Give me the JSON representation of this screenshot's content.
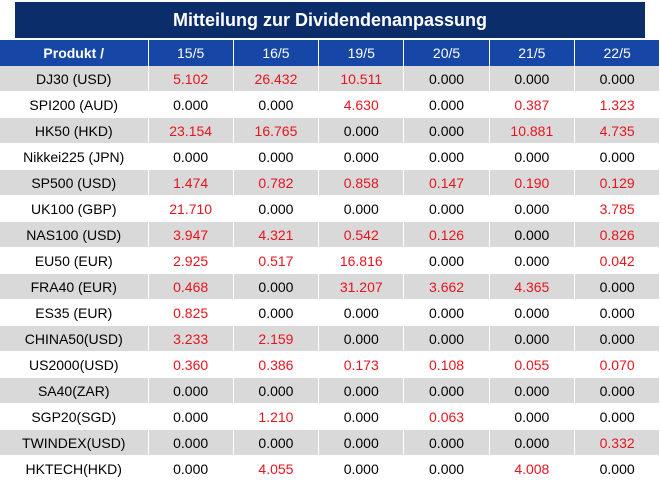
{
  "title": "Mitteilung zur Dividendenanpassung",
  "header": {
    "product_label": "Produkt /",
    "dates": [
      "15/5",
      "16/5",
      "19/5",
      "20/5",
      "21/5",
      "22/5"
    ]
  },
  "colors": {
    "title_bg": "#0b2d6a",
    "header_bg": "#1747a6",
    "row_shade": "#d9d9d9",
    "nonzero_text": "#e8141d",
    "zero_text": "#000000"
  },
  "rows": [
    {
      "product": "DJ30 (USD)",
      "values": [
        "5.102",
        "26.432",
        "10.511",
        "0.000",
        "0.000",
        "0.000"
      ]
    },
    {
      "product": "SPI200 (AUD)",
      "values": [
        "0.000",
        "0.000",
        "4.630",
        "0.000",
        "0.387",
        "1.323"
      ]
    },
    {
      "product": "HK50 (HKD)",
      "values": [
        "23.154",
        "16.765",
        "0.000",
        "0.000",
        "10.881",
        "4.735"
      ]
    },
    {
      "product": "Nikkei225 (JPN)",
      "values": [
        "0.000",
        "0.000",
        "0.000",
        "0.000",
        "0.000",
        "0.000"
      ]
    },
    {
      "product": "SP500 (USD)",
      "values": [
        "1.474",
        "0.782",
        "0.858",
        "0.147",
        "0.190",
        "0.129"
      ]
    },
    {
      "product": "UK100 (GBP)",
      "values": [
        "21.710",
        "0.000",
        "0.000",
        "0.000",
        "0.000",
        "3.785"
      ]
    },
    {
      "product": "NAS100 (USD)",
      "values": [
        "3.947",
        "4.321",
        "0.542",
        "0.126",
        "0.000",
        "0.826"
      ]
    },
    {
      "product": "EU50 (EUR)",
      "values": [
        "2.925",
        "0.517",
        "16.816",
        "0.000",
        "0.000",
        "0.042"
      ]
    },
    {
      "product": "FRA40 (EUR)",
      "values": [
        "0.468",
        "0.000",
        "31.207",
        "3.662",
        "4.365",
        "0.000"
      ]
    },
    {
      "product": "ES35 (EUR)",
      "values": [
        "0.825",
        "0.000",
        "0.000",
        "0.000",
        "0.000",
        "0.000"
      ]
    },
    {
      "product": "CHINA50(USD)",
      "values": [
        "3.233",
        "2.159",
        "0.000",
        "0.000",
        "0.000",
        "0.000"
      ]
    },
    {
      "product": "US2000(USD)",
      "values": [
        "0.360",
        "0.386",
        "0.173",
        "0.108",
        "0.055",
        "0.070"
      ]
    },
    {
      "product": "SA40(ZAR)",
      "values": [
        "0.000",
        "0.000",
        "0.000",
        "0.000",
        "0.000",
        "0.000"
      ]
    },
    {
      "product": "SGP20(SGD)",
      "values": [
        "0.000",
        "1.210",
        "0.000",
        "0.063",
        "0.000",
        "0.000"
      ]
    },
    {
      "product": "TWINDEX(USD)",
      "values": [
        "0.000",
        "0.000",
        "0.000",
        "0.000",
        "0.000",
        "0.332"
      ]
    },
    {
      "product": "HKTECH(HKD)",
      "values": [
        "0.000",
        "4.055",
        "0.000",
        "0.000",
        "4.008",
        "0.000"
      ]
    }
  ]
}
